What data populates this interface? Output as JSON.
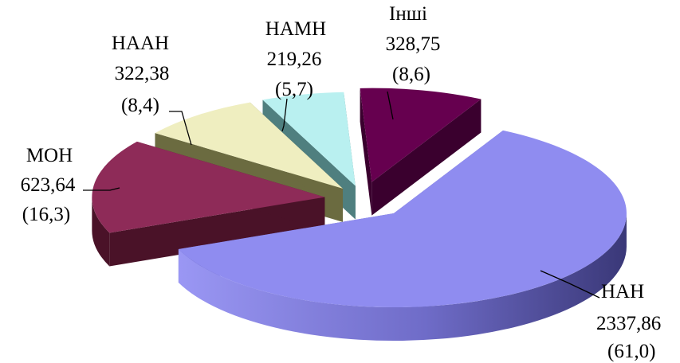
{
  "chart_data": {
    "type": "pie",
    "style": "3d-exploded",
    "title": "",
    "slices": [
      {
        "name": "НАН",
        "value": 2337.86,
        "percent_label": "(61,0)",
        "value_label": "2337,86",
        "color": "#8f8cf0",
        "side_color": "#5a58b0"
      },
      {
        "name": "МОН",
        "value": 623.64,
        "percent_label": "(16,3)",
        "value_label": "623,64",
        "color": "#8e2b58",
        "side_color": "#4a1228"
      },
      {
        "name": "НААН",
        "value": 322.38,
        "percent_label": "(8,4)",
        "value_label": "322,38",
        "color": "#efeec0",
        "side_color": "#6b6b40"
      },
      {
        "name": "НАМН",
        "value": 219.26,
        "percent_label": "(5,7)",
        "value_label": "219,26",
        "color": "#b9f0f0",
        "side_color": "#4f7f7f"
      },
      {
        "name": "Інші",
        "value": 328.75,
        "percent_label": "(8,6)",
        "value_label": "328,75",
        "color": "#66004f",
        "side_color": "#3a002e"
      }
    ],
    "legend": "none",
    "units_note": ""
  }
}
